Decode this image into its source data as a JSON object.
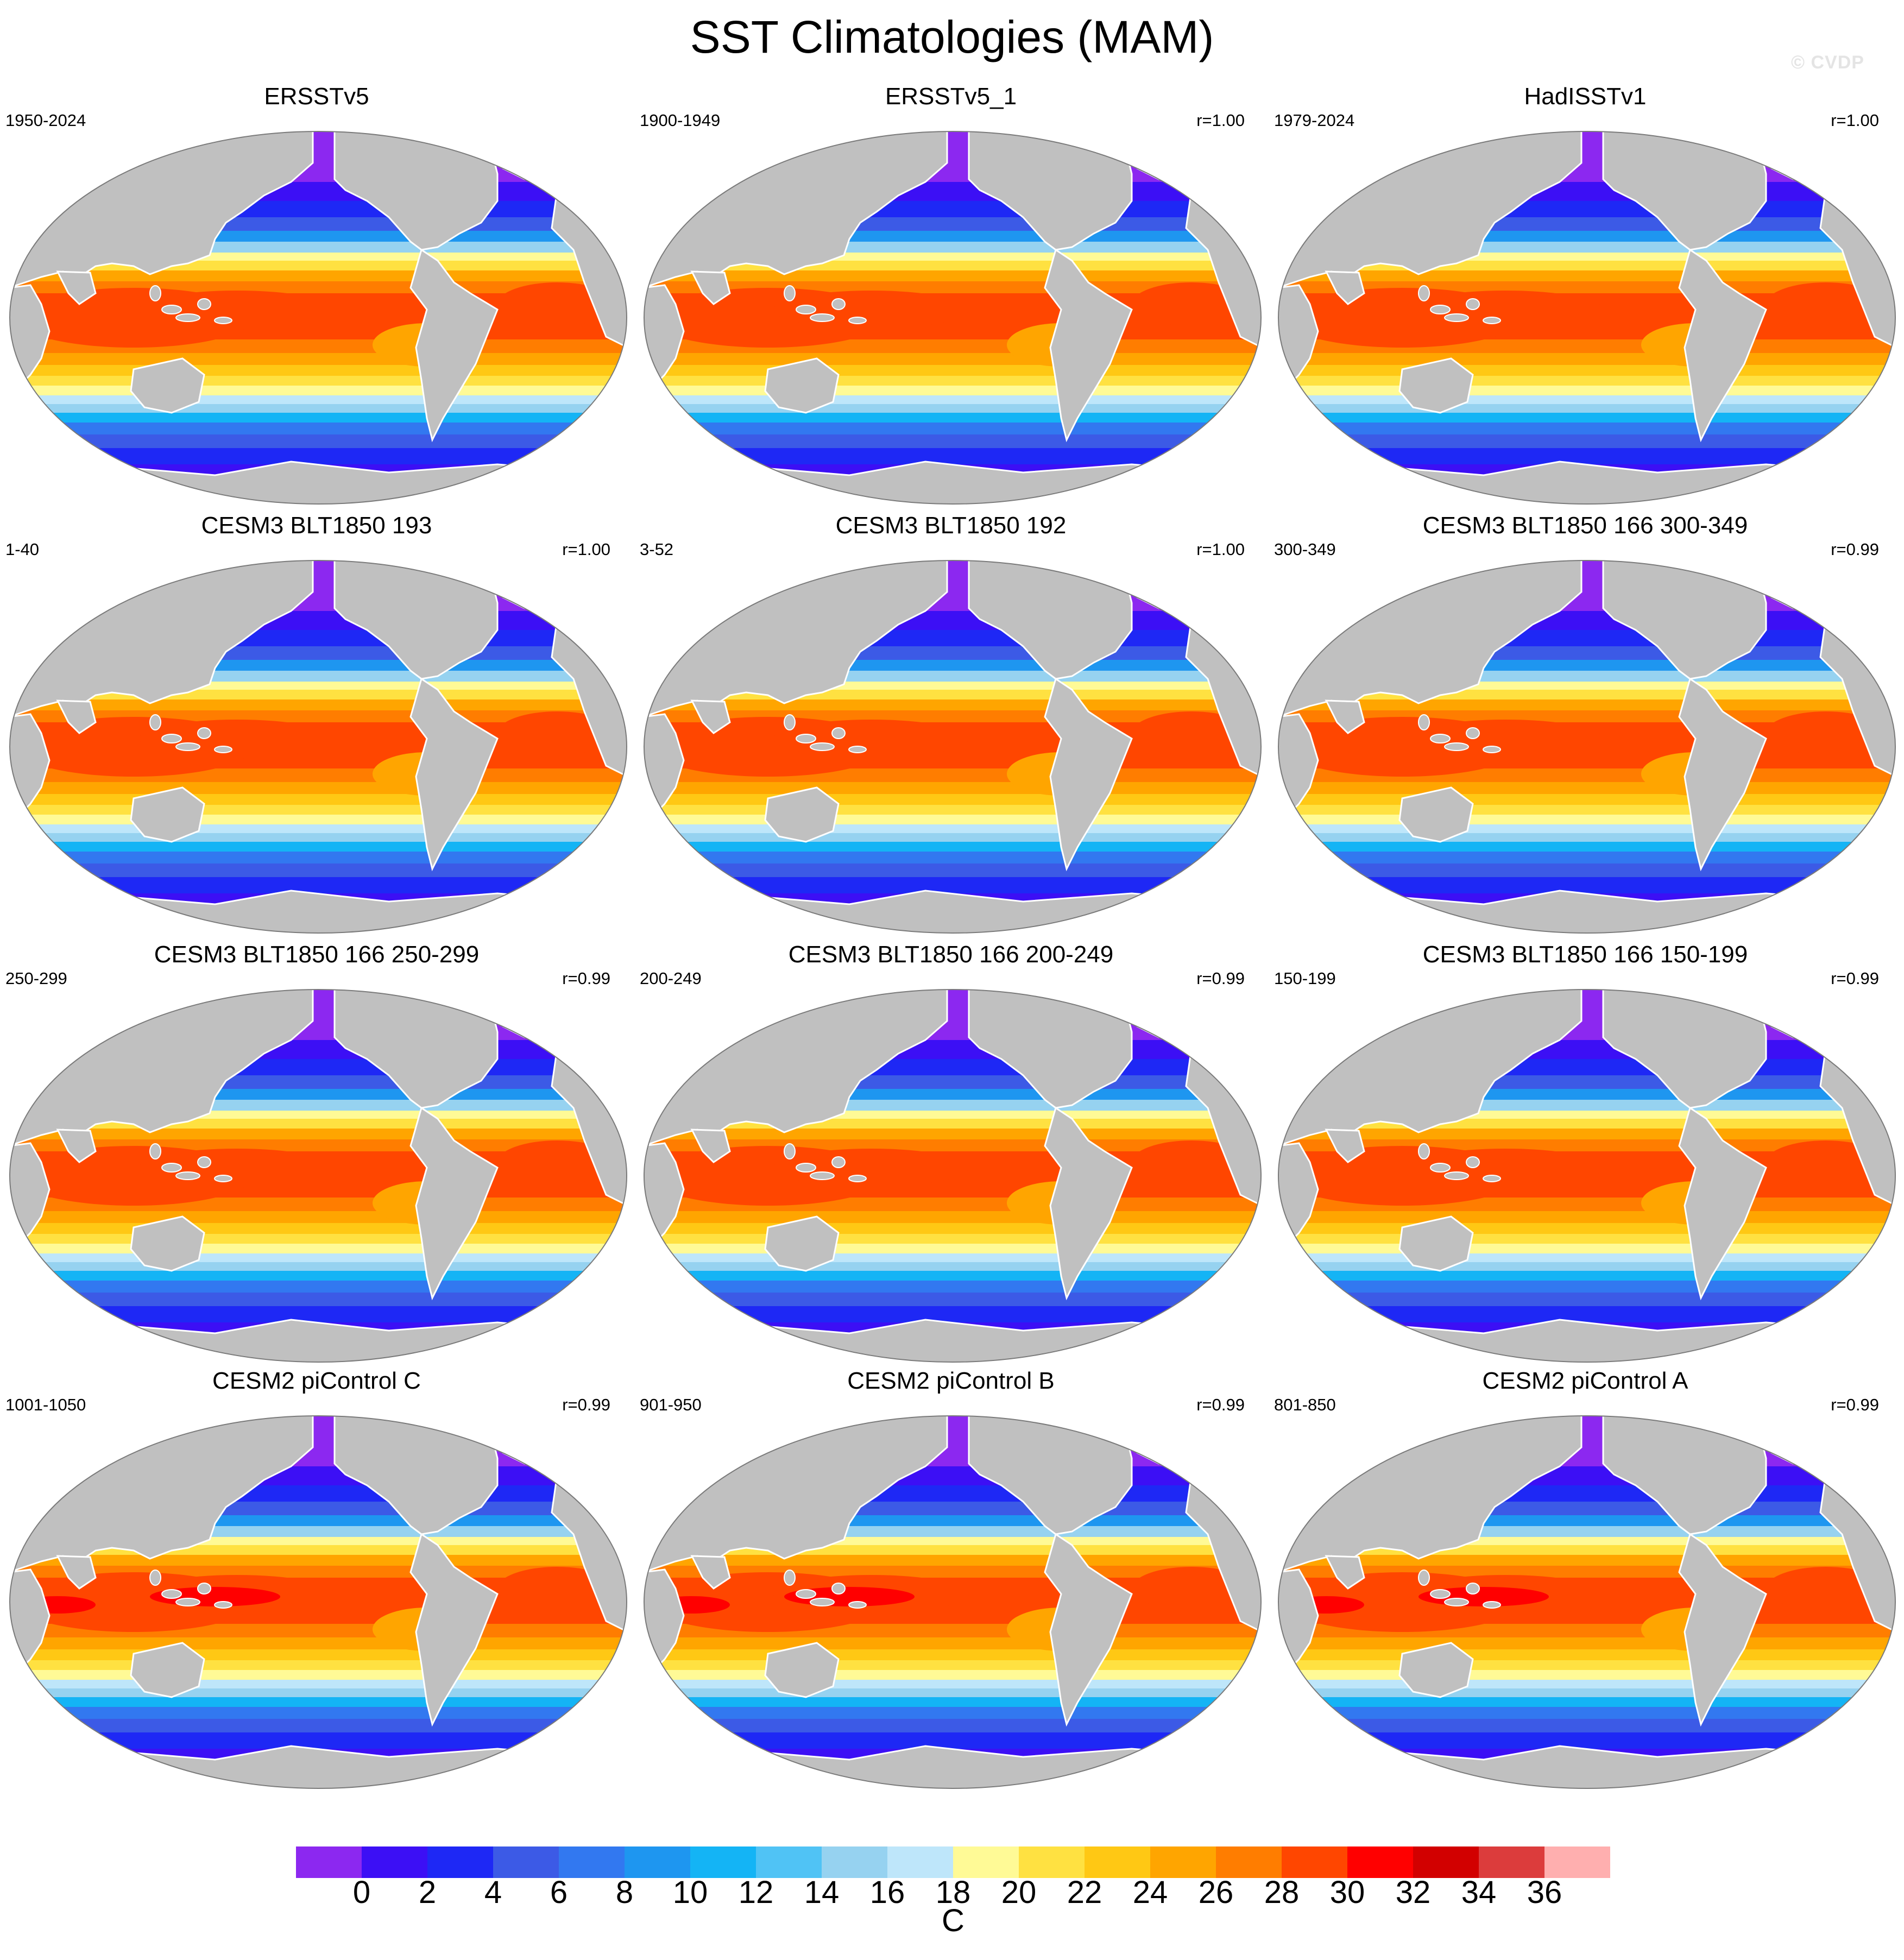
{
  "title": "SST Climatologies (MAM)",
  "watermark": "© CVDP",
  "panels": [
    {
      "title": "ERSSTv5",
      "period": "1950-2024",
      "corr": ""
    },
    {
      "title": "ERSSTv5_1",
      "period": "1900-1949",
      "corr": "r=1.00"
    },
    {
      "title": "HadISSTv1",
      "period": "1979-2024",
      "corr": "r=1.00"
    },
    {
      "title": "CESM3 BLT1850 193",
      "period": "1-40",
      "corr": "r=1.00"
    },
    {
      "title": "CESM3 BLT1850 192",
      "period": "3-52",
      "corr": "r=1.00"
    },
    {
      "title": "CESM3 BLT1850 166 300-349",
      "period": "300-349",
      "corr": "r=0.99"
    },
    {
      "title": "CESM3 BLT1850 166 250-299",
      "period": "250-299",
      "corr": "r=0.99"
    },
    {
      "title": "CESM3 BLT1850 166 200-249",
      "period": "200-249",
      "corr": "r=0.99"
    },
    {
      "title": "CESM3 BLT1850 166 150-199",
      "period": "150-199",
      "corr": "r=0.99"
    },
    {
      "title": "CESM2 piControl C",
      "period": "1001-1050",
      "corr": "r=0.99"
    },
    {
      "title": "CESM2 piControl B",
      "period": "901-950",
      "corr": "r=0.99"
    },
    {
      "title": "CESM2 piControl A",
      "period": "801-850",
      "corr": "r=0.99"
    }
  ],
  "colorbar": {
    "unit": "C",
    "tick_labels": [
      "0",
      "2",
      "4",
      "6",
      "8",
      "10",
      "12",
      "14",
      "16",
      "18",
      "20",
      "22",
      "24",
      "26",
      "28",
      "30",
      "32",
      "34",
      "36"
    ],
    "colors": [
      "#8c28f0",
      "#3c0ff5",
      "#1e28f5",
      "#3c5ae6",
      "#3278f0",
      "#1e96f0",
      "#14b4f5",
      "#50c3f5",
      "#96d2f0",
      "#bee6fa",
      "#fffa96",
      "#ffe141",
      "#ffc814",
      "#ffa500",
      "#ff7d00",
      "#ff4600",
      "#ff0000",
      "#d20000",
      "#dc3c3c",
      "#ffafaf"
    ]
  },
  "colors": {
    "land": "#c0c0c0",
    "coast": "#ffffff",
    "border": "#7a7a7a"
  }
}
